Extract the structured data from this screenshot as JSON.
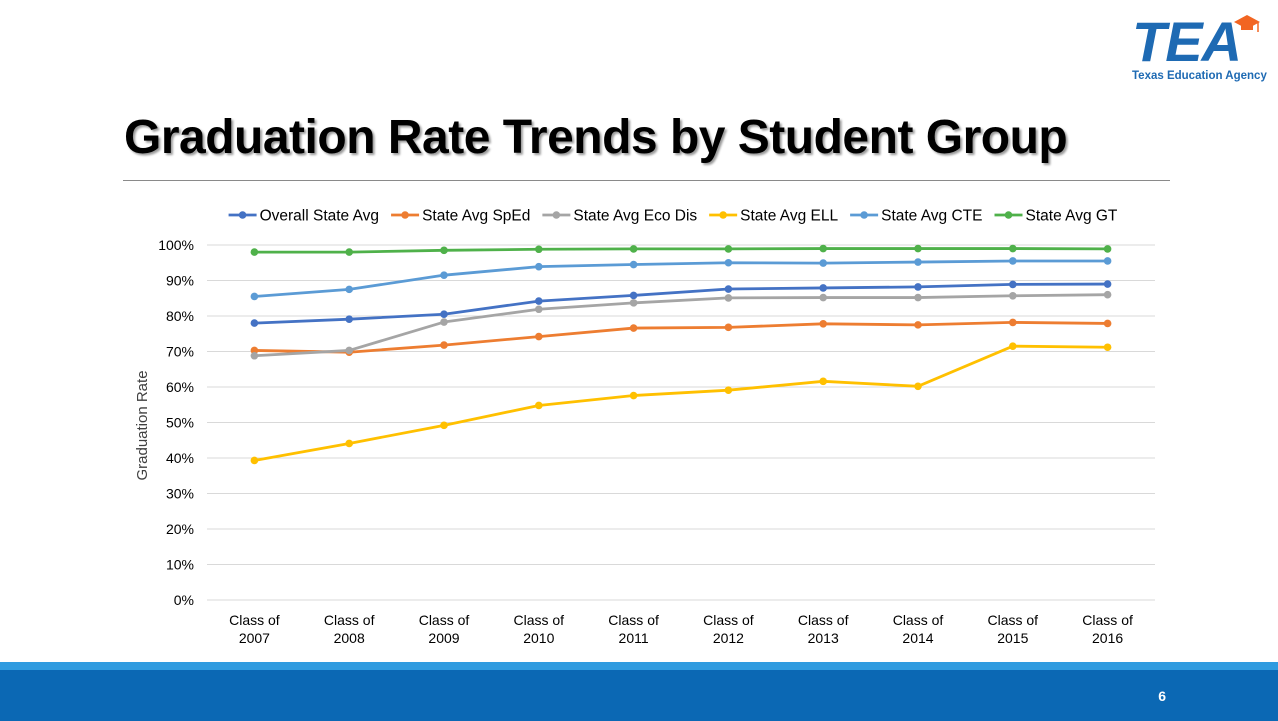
{
  "header": {
    "title": "Graduation Rate Trends by Student Group",
    "logo_text": "TEA",
    "logo_subtext": "Texas Education Agency"
  },
  "footer": {
    "page_number": "6"
  },
  "colors": {
    "brand_blue": "#1e6ab3",
    "footer_blue": "#0b68b4",
    "footer_accent": "#2f9be0",
    "logo_cap": "#f26522"
  },
  "chart_data": {
    "type": "line",
    "title": "",
    "xlabel": "",
    "ylabel": "Graduation Rate",
    "ylim": [
      0,
      100
    ],
    "yticks": [
      "0%",
      "10%",
      "20%",
      "30%",
      "40%",
      "50%",
      "60%",
      "70%",
      "80%",
      "90%",
      "100%"
    ],
    "grid": true,
    "legend_position": "top",
    "categories": [
      [
        "Class of",
        "2007"
      ],
      [
        "Class of",
        "2008"
      ],
      [
        "Class of",
        "2009"
      ],
      [
        "Class of",
        "2010"
      ],
      [
        "Class of",
        "2011"
      ],
      [
        "Class of",
        "2012"
      ],
      [
        "Class of",
        "2013"
      ],
      [
        "Class of",
        "2014"
      ],
      [
        "Class of",
        "2015"
      ],
      [
        "Class of",
        "2016"
      ]
    ],
    "series": [
      {
        "name": "Overall State Avg",
        "color": "#4472c4",
        "values": [
          78.0,
          79.1,
          80.5,
          84.2,
          85.8,
          87.6,
          87.9,
          88.2,
          88.9,
          89.0
        ]
      },
      {
        "name": "State Avg SpEd",
        "color": "#ed7d31",
        "values": [
          70.3,
          69.8,
          71.8,
          74.2,
          76.6,
          76.8,
          77.8,
          77.5,
          78.2,
          77.9
        ]
      },
      {
        "name": "State Avg Eco Dis",
        "color": "#a5a5a5",
        "values": [
          68.8,
          70.3,
          78.3,
          81.9,
          83.7,
          85.1,
          85.2,
          85.2,
          85.7,
          86.0
        ]
      },
      {
        "name": "State Avg ELL",
        "color": "#ffc000",
        "values": [
          39.3,
          44.1,
          49.2,
          54.8,
          57.6,
          59.1,
          61.6,
          60.2,
          71.5,
          71.2
        ]
      },
      {
        "name": "State Avg CTE",
        "color": "#5b9bd5",
        "values": [
          85.5,
          87.5,
          91.5,
          93.9,
          94.5,
          95.0,
          94.9,
          95.2,
          95.5,
          95.5
        ]
      },
      {
        "name": "State Avg GT",
        "color": "#4fb14a",
        "values": [
          98.0,
          98.0,
          98.5,
          98.8,
          98.9,
          98.9,
          99.0,
          99.0,
          99.0,
          98.9
        ]
      }
    ]
  }
}
